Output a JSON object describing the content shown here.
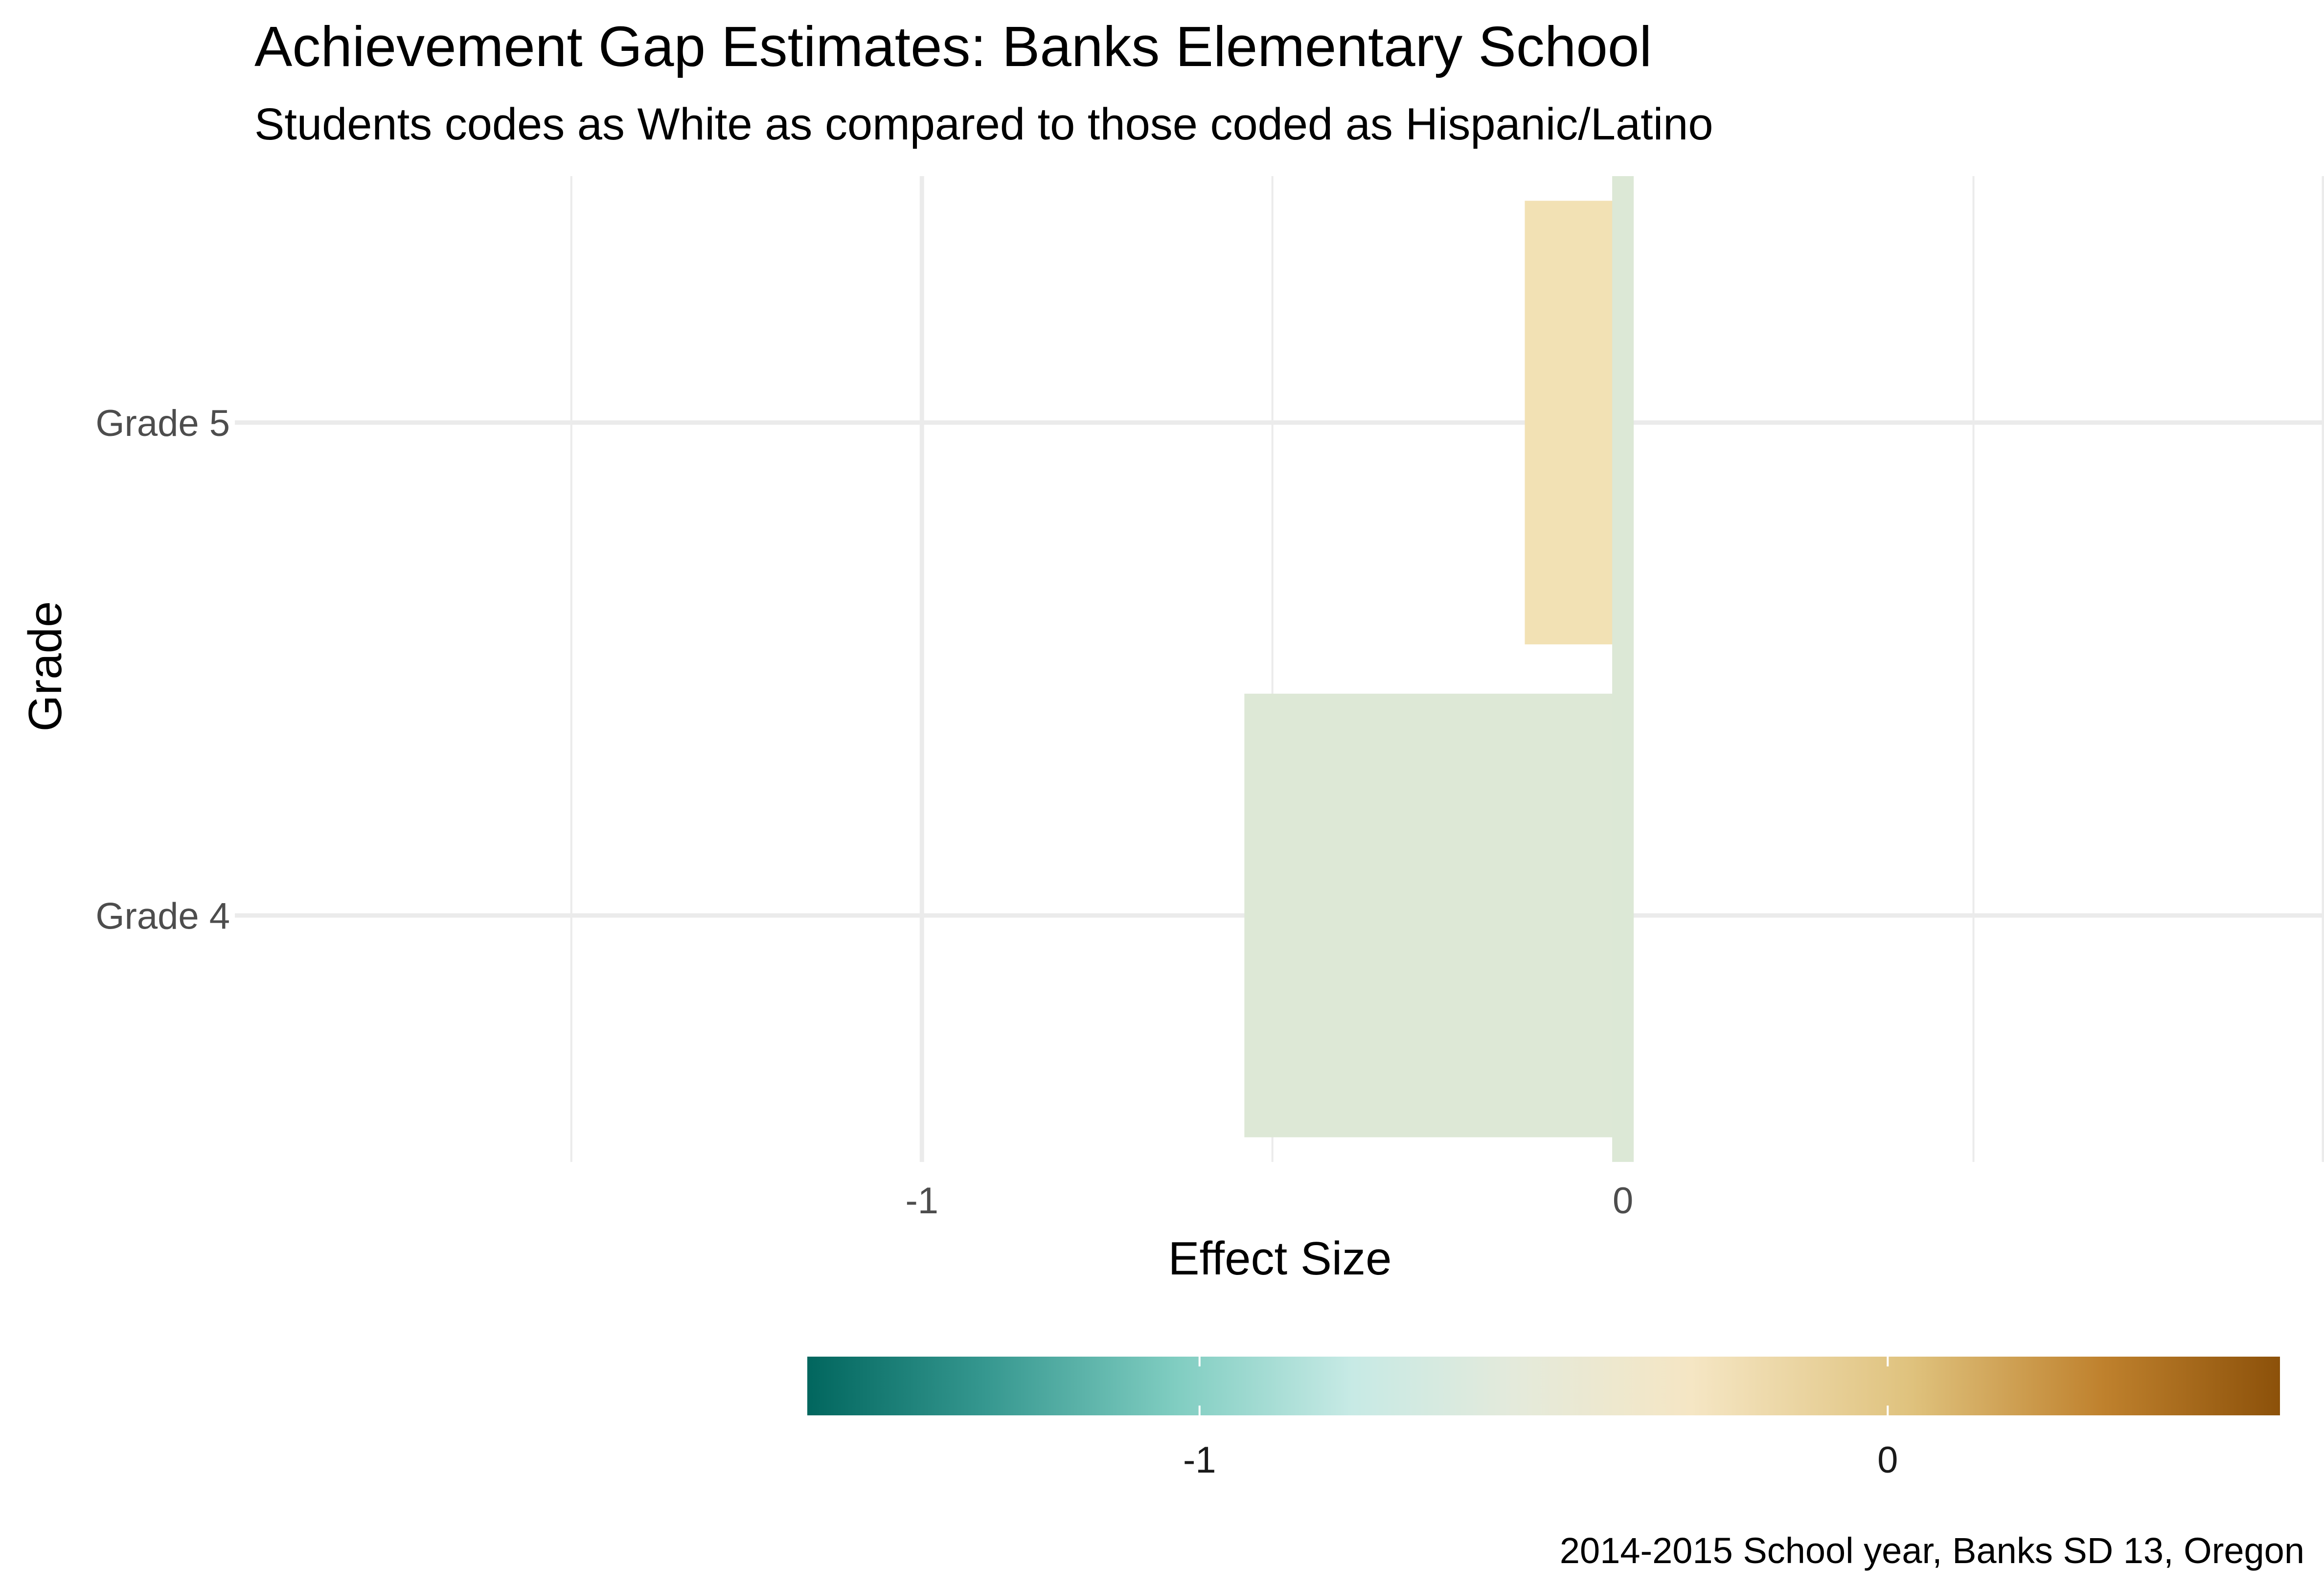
{
  "chart_data": {
    "type": "bar",
    "orientation": "horizontal",
    "title": "Achievement Gap Estimates: Banks Elementary School",
    "subtitle": "Students codes as White as compared to those coded as Hispanic/Latino",
    "xlabel": "Effect Size",
    "ylabel": "Grade",
    "categories": [
      "Grade 4",
      "Grade 5"
    ],
    "values": [
      -0.54,
      -0.14
    ],
    "xlim": [
      -1.98,
      1.0
    ],
    "x_ticks": [
      -1,
      0
    ],
    "x_tick_labels": [
      "-1",
      "0"
    ],
    "reference_line": 0,
    "grid": true,
    "legend": {
      "type": "colorbar",
      "placement": "bottom",
      "range": [
        -1.57,
        0.57
      ],
      "ticks": [
        -1,
        0
      ],
      "tick_labels": [
        "-1",
        "0"
      ]
    },
    "colors": {
      "low": "#01665e",
      "mid_low": "#c7eae5",
      "mid": "#f5e6c4",
      "mid_high": "#dfc27d",
      "high": "#8c510a",
      "grid": "#ebebeb",
      "reference_line": "#dce8d6"
    },
    "caption": "2014-2015 School year, Banks SD 13, Oregon"
  }
}
